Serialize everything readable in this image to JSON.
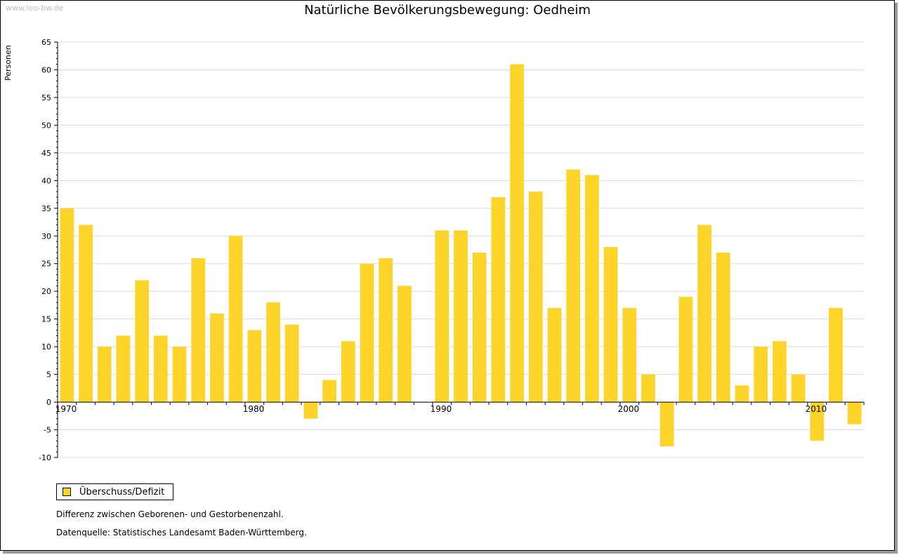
{
  "watermark": "www.leo-bw.de",
  "chart_data": {
    "type": "bar",
    "title": "Natürliche Bevölkerungsbewegung: Oedheim",
    "ylabel": "Personen",
    "xlabel": "",
    "ylim": [
      -10,
      65
    ],
    "yticks": [
      -10,
      -5,
      0,
      5,
      10,
      15,
      20,
      25,
      30,
      35,
      40,
      45,
      50,
      55,
      60,
      65
    ],
    "xtick_labels": [
      "1970",
      "1980",
      "1990",
      "2000",
      "2010"
    ],
    "grid": true,
    "bar_color": "#fdd52a",
    "categories": [
      1970,
      1971,
      1972,
      1973,
      1974,
      1975,
      1976,
      1977,
      1978,
      1979,
      1980,
      1981,
      1982,
      1983,
      1984,
      1985,
      1986,
      1987,
      1988,
      1989,
      1990,
      1991,
      1992,
      1993,
      1994,
      1995,
      1996,
      1997,
      1998,
      1999,
      2000,
      2001,
      2002,
      2003,
      2004,
      2005,
      2006,
      2007,
      2008,
      2009,
      2010,
      2011,
      2012
    ],
    "series": [
      {
        "name": "Überschuss/Defizit",
        "values": [
          35,
          32,
          10,
          12,
          22,
          12,
          10,
          26,
          16,
          30,
          13,
          18,
          14,
          -3,
          4,
          11,
          25,
          26,
          21,
          0,
          31,
          31,
          27,
          37,
          61,
          38,
          17,
          42,
          41,
          28,
          17,
          5,
          -8,
          19,
          32,
          27,
          3,
          10,
          11,
          5,
          -7,
          17,
          -4
        ]
      }
    ],
    "legend_position": "bottom-left"
  },
  "notes": {
    "line1": "Differenz zwischen Geborenen- und Gestorbenenzahl.",
    "line2": "Datenquelle: Statistisches Landesamt Baden-Württemberg."
  }
}
